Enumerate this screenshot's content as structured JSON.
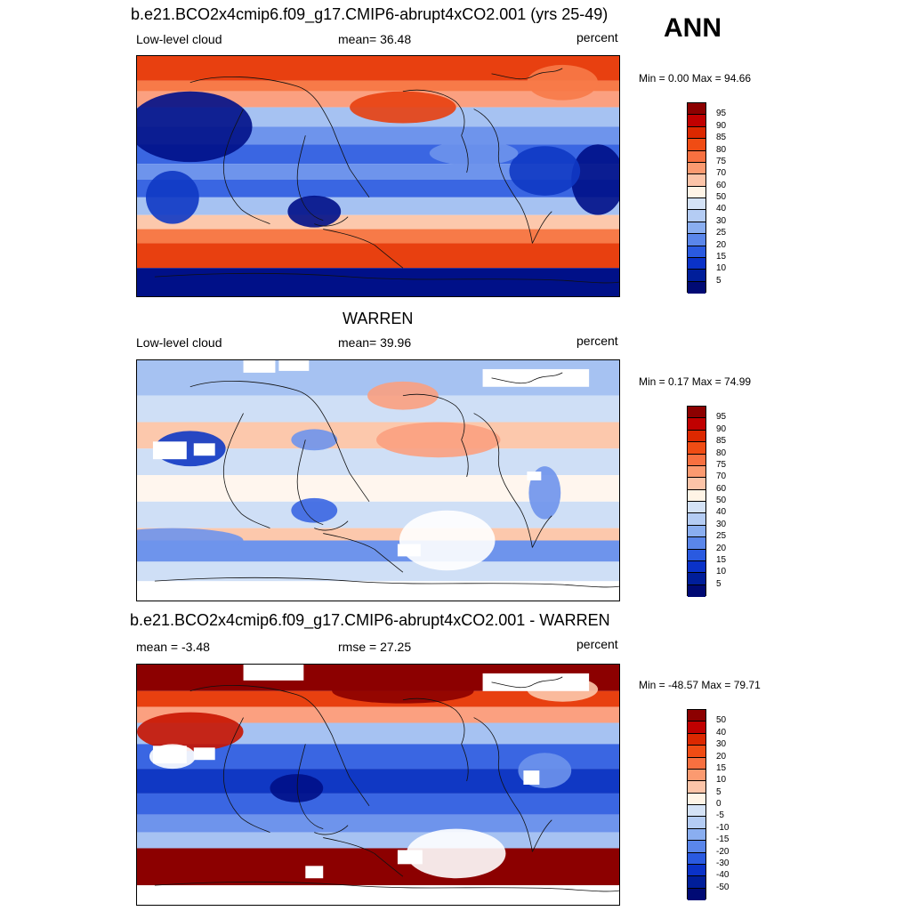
{
  "season": "ANN",
  "panels": [
    {
      "title": "b.e21.BCO2x4cmip6.f09_g17.CMIP6-abrupt4xCO2.001 (yrs 25-49)",
      "left_label": "Low-level cloud",
      "center_label": "mean=  36.48",
      "units": "percent",
      "minmax": "Min =   0.00 Max =  94.66",
      "variant": "model",
      "mean": 36.48,
      "min": 0.0,
      "max": 94.66
    },
    {
      "title": "WARREN",
      "left_label": "Low-level cloud",
      "center_label": "mean=  39.96",
      "units": "percent",
      "minmax": "Min =   0.17 Max =  74.99",
      "variant": "obs",
      "mean": 39.96,
      "min": 0.17,
      "max": 74.99
    },
    {
      "title": "b.e21.BCO2x4cmip6.f09_g17.CMIP6-abrupt4xCO2.001 - WARREN",
      "left_label": "mean =  -3.48",
      "center_label": "rmse =  27.25",
      "units": "percent",
      "minmax": "Min = -48.57 Max =  79.71",
      "variant": "diff",
      "mean": -3.48,
      "rmse": 27.25,
      "min": -48.57,
      "max": 79.71
    }
  ],
  "colorbar_levels": [
    "95",
    "90",
    "85",
    "80",
    "75",
    "70",
    "60",
    "50",
    "40",
    "30",
    "25",
    "20",
    "15",
    "10",
    "5"
  ],
  "colorbar_diff_levels": [
    "50",
    "40",
    "30",
    "20",
    "15",
    "10",
    "5",
    "0",
    "-5",
    "-10",
    "-15",
    "-20",
    "-30",
    "-40",
    "-50"
  ],
  "colorbar_colors": [
    "#8c0000",
    "#c00000",
    "#dc2800",
    "#f04c14",
    "#f87040",
    "#fb9a70",
    "#fcc4a8",
    "#fff4e6",
    "#d4e2f6",
    "#b4ccf4",
    "#8aaef0",
    "#5a86ea",
    "#2a5ae0",
    "#0a32c8",
    "#001e9a",
    "#000a74"
  ]
}
